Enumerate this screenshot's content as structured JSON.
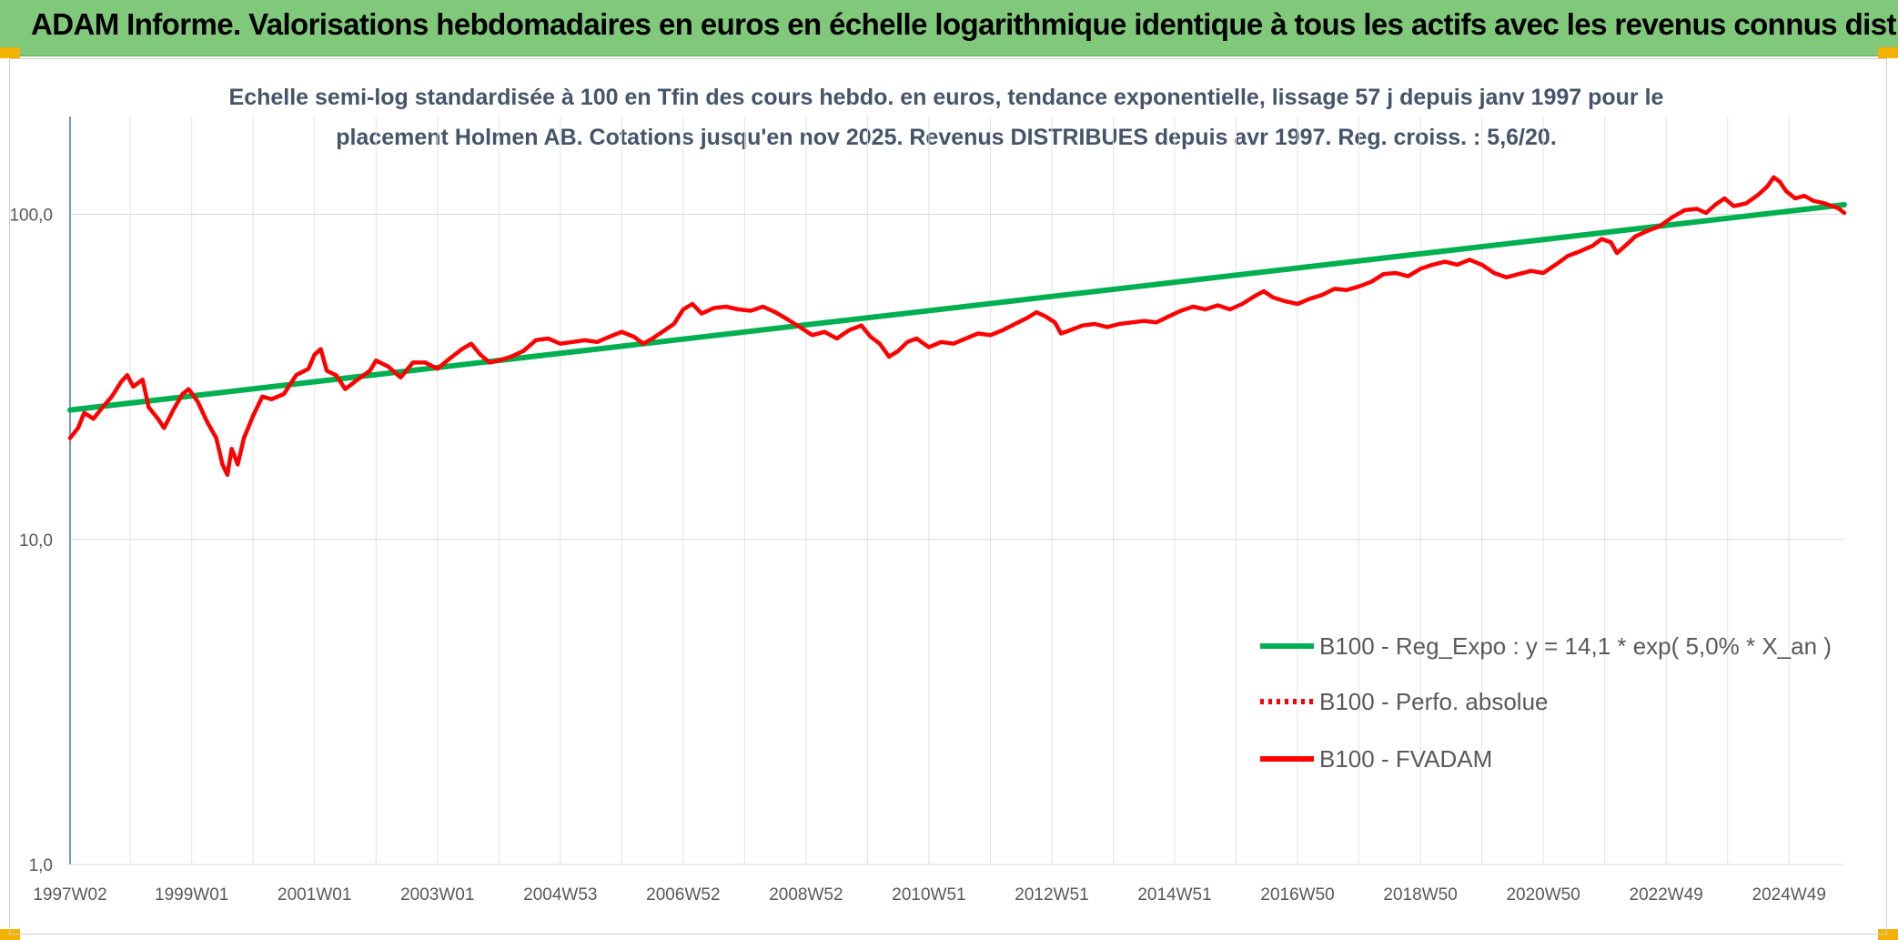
{
  "banner": {
    "title": "ADAM Informe. Valorisations hebdomadaires en euros en échelle logarithmique identique à tous les actifs avec les revenus connus distribués"
  },
  "chart_data": {
    "type": "line",
    "title": "",
    "subtitle_lines": [
      "Echelle semi-log standardisée à 100 en Tfin des cours hebdo. en euros, tendance exponentielle, lissage 57 j depuis janv 1997 pour le",
      "placement Holmen AB. Cotations jusqu'en nov 2025. Revenus DISTRIBUES depuis avr 1997. Reg. croiss. : 5,6/20."
    ],
    "y_scale": "log",
    "ylim": [
      1,
      200
    ],
    "y_ticks": [
      1,
      10,
      100
    ],
    "y_tick_labels": [
      "1,0",
      "10,0",
      "100,0"
    ],
    "x_range": [
      1997.02,
      2025.9
    ],
    "x_ticks": [
      {
        "label": "1997W02",
        "t": 1997.02
      },
      {
        "label": "1999W01",
        "t": 1999.0
      },
      {
        "label": "2001W01",
        "t": 2001.0
      },
      {
        "label": "2003W01",
        "t": 2003.0
      },
      {
        "label": "2004W53",
        "t": 2005.0
      },
      {
        "label": "2006W52",
        "t": 2007.0
      },
      {
        "label": "2008W52",
        "t": 2009.0
      },
      {
        "label": "2010W51",
        "t": 2011.0
      },
      {
        "label": "2012W51",
        "t": 2013.0
      },
      {
        "label": "2014W51",
        "t": 2015.0
      },
      {
        "label": "2016W50",
        "t": 2017.0
      },
      {
        "label": "2018W50",
        "t": 2019.0
      },
      {
        "label": "2020W50",
        "t": 2021.0
      },
      {
        "label": "2022W49",
        "t": 2023.0
      },
      {
        "label": "2024W49",
        "t": 2025.0
      }
    ],
    "grid": true,
    "legend_position": "right-middle",
    "series": [
      {
        "name": "B100 - Reg_Expo : y = 14,1 * exp( 5,0% *  X_an )",
        "color": "#00b050",
        "style": "solid",
        "points": [
          [
            1997.02,
            25.0
          ],
          [
            2025.9,
            107.0
          ]
        ]
      },
      {
        "name": "B100 - Perfo. absolue",
        "color": "#ff0000",
        "style": "dotted",
        "points": []
      },
      {
        "name": "B100 - FVADAM",
        "color": "#ff0000",
        "style": "solid",
        "points": [
          [
            1997.02,
            20.5
          ],
          [
            1997.15,
            22.0
          ],
          [
            1997.25,
            24.5
          ],
          [
            1997.4,
            23.5
          ],
          [
            1997.55,
            25.5
          ],
          [
            1997.7,
            27.5
          ],
          [
            1997.85,
            30.5
          ],
          [
            1997.95,
            32.0
          ],
          [
            1998.05,
            29.5
          ],
          [
            1998.2,
            31.0
          ],
          [
            1998.3,
            25.5
          ],
          [
            1998.45,
            23.5
          ],
          [
            1998.55,
            22.0
          ],
          [
            1998.7,
            25.0
          ],
          [
            1998.85,
            28.0
          ],
          [
            1998.95,
            29.0
          ],
          [
            1999.1,
            26.5
          ],
          [
            1999.25,
            23.0
          ],
          [
            1999.4,
            20.5
          ],
          [
            1999.5,
            17.0
          ],
          [
            1999.58,
            15.8
          ],
          [
            1999.65,
            19.0
          ],
          [
            1999.75,
            17.0
          ],
          [
            1999.85,
            20.5
          ],
          [
            2000.0,
            24.0
          ],
          [
            2000.15,
            27.5
          ],
          [
            2000.3,
            27.0
          ],
          [
            2000.5,
            28.0
          ],
          [
            2000.7,
            32.0
          ],
          [
            2000.9,
            33.5
          ],
          [
            2001.0,
            37.0
          ],
          [
            2001.1,
            38.5
          ],
          [
            2001.2,
            33.0
          ],
          [
            2001.35,
            32.0
          ],
          [
            2001.5,
            29.0
          ],
          [
            2001.7,
            31.0
          ],
          [
            2001.9,
            33.0
          ],
          [
            2002.0,
            35.5
          ],
          [
            2002.2,
            34.0
          ],
          [
            2002.4,
            31.5
          ],
          [
            2002.6,
            35.0
          ],
          [
            2002.8,
            35.0
          ],
          [
            2003.0,
            33.5
          ],
          [
            2003.2,
            36.0
          ],
          [
            2003.4,
            38.5
          ],
          [
            2003.55,
            40.0
          ],
          [
            2003.7,
            37.0
          ],
          [
            2003.85,
            35.0
          ],
          [
            2004.0,
            35.5
          ],
          [
            2004.2,
            36.5
          ],
          [
            2004.4,
            38.0
          ],
          [
            2004.6,
            41.0
          ],
          [
            2004.8,
            41.5
          ],
          [
            2005.0,
            40.0
          ],
          [
            2005.2,
            40.5
          ],
          [
            2005.4,
            41.0
          ],
          [
            2005.6,
            40.5
          ],
          [
            2005.8,
            42.0
          ],
          [
            2006.0,
            43.5
          ],
          [
            2006.2,
            42.0
          ],
          [
            2006.35,
            40.0
          ],
          [
            2006.5,
            41.5
          ],
          [
            2006.7,
            44.0
          ],
          [
            2006.85,
            46.0
          ],
          [
            2007.0,
            51.0
          ],
          [
            2007.15,
            53.0
          ],
          [
            2007.3,
            49.5
          ],
          [
            2007.5,
            51.5
          ],
          [
            2007.7,
            52.0
          ],
          [
            2007.9,
            51.0
          ],
          [
            2008.1,
            50.5
          ],
          [
            2008.3,
            52.0
          ],
          [
            2008.5,
            50.0
          ],
          [
            2008.7,
            47.5
          ],
          [
            2008.9,
            45.0
          ],
          [
            2009.1,
            42.5
          ],
          [
            2009.3,
            43.5
          ],
          [
            2009.5,
            41.5
          ],
          [
            2009.7,
            44.0
          ],
          [
            2009.9,
            45.5
          ],
          [
            2010.05,
            42.0
          ],
          [
            2010.2,
            40.0
          ],
          [
            2010.35,
            36.5
          ],
          [
            2010.5,
            38.0
          ],
          [
            2010.65,
            40.5
          ],
          [
            2010.8,
            41.5
          ],
          [
            2011.0,
            39.0
          ],
          [
            2011.2,
            40.5
          ],
          [
            2011.4,
            40.0
          ],
          [
            2011.6,
            41.5
          ],
          [
            2011.8,
            43.0
          ],
          [
            2012.0,
            42.5
          ],
          [
            2012.2,
            44.0
          ],
          [
            2012.4,
            46.0
          ],
          [
            2012.6,
            48.0
          ],
          [
            2012.75,
            50.0
          ],
          [
            2012.9,
            48.5
          ],
          [
            2013.05,
            46.5
          ],
          [
            2013.15,
            43.0
          ],
          [
            2013.3,
            44.0
          ],
          [
            2013.5,
            45.5
          ],
          [
            2013.7,
            46.0
          ],
          [
            2013.9,
            45.0
          ],
          [
            2014.1,
            46.0
          ],
          [
            2014.3,
            46.5
          ],
          [
            2014.5,
            47.0
          ],
          [
            2014.7,
            46.5
          ],
          [
            2014.9,
            48.5
          ],
          [
            2015.1,
            50.5
          ],
          [
            2015.3,
            52.0
          ],
          [
            2015.5,
            51.0
          ],
          [
            2015.7,
            52.5
          ],
          [
            2015.9,
            51.0
          ],
          [
            2016.1,
            53.0
          ],
          [
            2016.3,
            56.0
          ],
          [
            2016.45,
            58.0
          ],
          [
            2016.6,
            55.5
          ],
          [
            2016.8,
            54.0
          ],
          [
            2017.0,
            53.0
          ],
          [
            2017.2,
            55.0
          ],
          [
            2017.4,
            56.5
          ],
          [
            2017.6,
            59.0
          ],
          [
            2017.8,
            58.5
          ],
          [
            2018.0,
            60.0
          ],
          [
            2018.2,
            62.0
          ],
          [
            2018.4,
            65.5
          ],
          [
            2018.6,
            66.0
          ],
          [
            2018.8,
            64.5
          ],
          [
            2019.0,
            68.0
          ],
          [
            2019.2,
            70.0
          ],
          [
            2019.4,
            71.5
          ],
          [
            2019.6,
            70.0
          ],
          [
            2019.8,
            72.5
          ],
          [
            2020.0,
            70.0
          ],
          [
            2020.2,
            66.0
          ],
          [
            2020.4,
            64.0
          ],
          [
            2020.6,
            65.5
          ],
          [
            2020.8,
            67.0
          ],
          [
            2021.0,
            66.0
          ],
          [
            2021.2,
            70.0
          ],
          [
            2021.4,
            74.5
          ],
          [
            2021.6,
            77.0
          ],
          [
            2021.8,
            80.0
          ],
          [
            2021.95,
            84.0
          ],
          [
            2022.1,
            82.0
          ],
          [
            2022.2,
            76.0
          ],
          [
            2022.35,
            80.5
          ],
          [
            2022.5,
            85.5
          ],
          [
            2022.7,
            89.0
          ],
          [
            2022.9,
            92.0
          ],
          [
            2023.1,
            98.0
          ],
          [
            2023.3,
            103.0
          ],
          [
            2023.5,
            104.0
          ],
          [
            2023.65,
            101.0
          ],
          [
            2023.8,
            107.0
          ],
          [
            2023.95,
            112.0
          ],
          [
            2024.1,
            106.0
          ],
          [
            2024.3,
            108.0
          ],
          [
            2024.5,
            115.0
          ],
          [
            2024.65,
            122.0
          ],
          [
            2024.75,
            130.0
          ],
          [
            2024.85,
            126.0
          ],
          [
            2024.95,
            118.0
          ],
          [
            2025.1,
            112.0
          ],
          [
            2025.25,
            114.0
          ],
          [
            2025.4,
            110.0
          ],
          [
            2025.55,
            108.5
          ],
          [
            2025.7,
            106.0
          ],
          [
            2025.8,
            104.5
          ],
          [
            2025.9,
            101.0
          ]
        ]
      }
    ]
  }
}
